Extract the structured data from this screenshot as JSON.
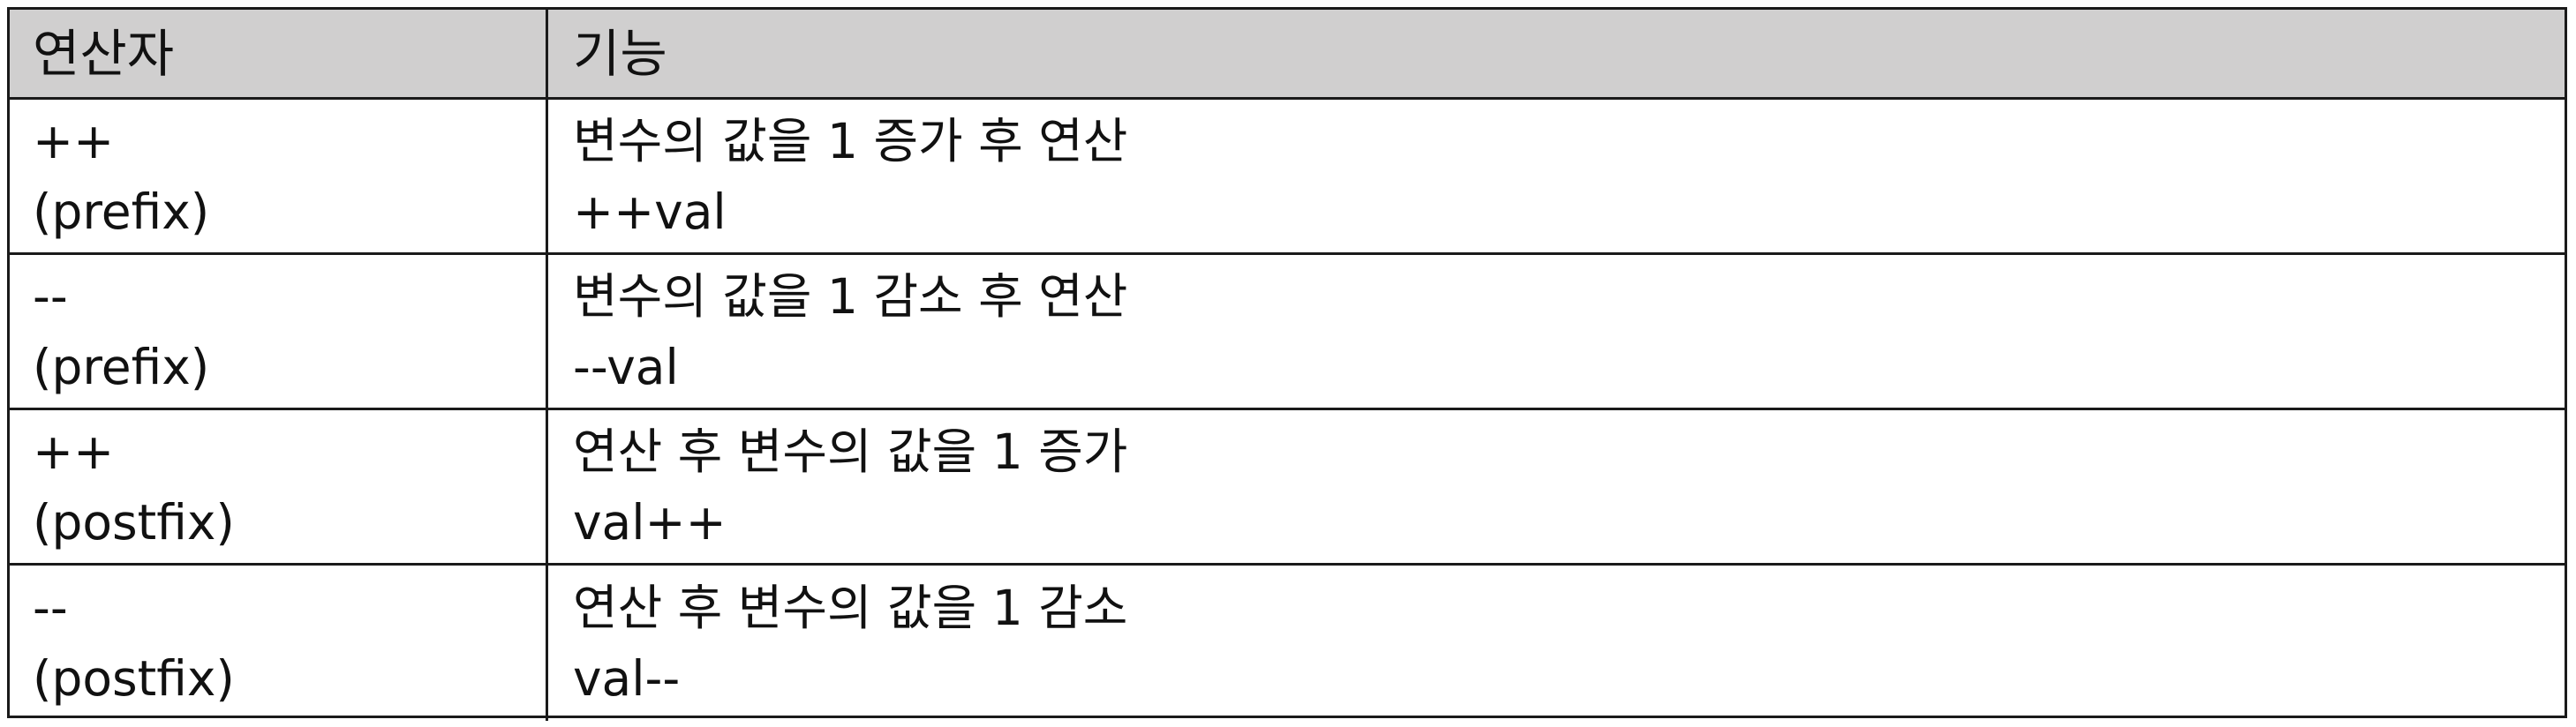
{
  "table": {
    "headers": [
      "연산자",
      "기능"
    ],
    "rows": [
      {
        "operator": "++",
        "kind": "(prefix)",
        "description": "변수의 값을 1 증가 후 연산",
        "example": "++val"
      },
      {
        "operator": "--",
        "kind": "(prefix)",
        "description": "변수의 값을 1 감소 후 연산",
        "example": "--val"
      },
      {
        "operator": "++",
        "kind": "(postfix)",
        "description": "연산 후 변수의 값을 1 증가",
        "example": "val++"
      },
      {
        "operator": "--",
        "kind": "(postfix)",
        "description": "연산 후 변수의 값을 1 감소",
        "example": "val--"
      }
    ]
  }
}
